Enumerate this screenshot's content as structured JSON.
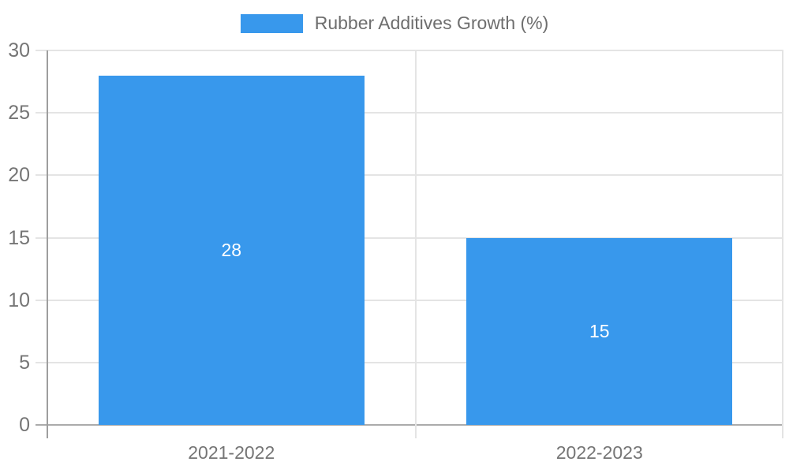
{
  "chart_data": {
    "type": "bar",
    "title": "",
    "legend": {
      "position": "top",
      "label": "Rubber Additives Growth (%)"
    },
    "categories": [
      "2021-2022",
      "2022-2023"
    ],
    "series": [
      {
        "name": "Rubber Additives Growth (%)",
        "values": [
          28,
          15
        ]
      }
    ],
    "ylim": [
      0,
      30
    ],
    "yticks": [
      0,
      5,
      10,
      15,
      20,
      25,
      30
    ],
    "xlabel": "",
    "ylabel": "",
    "grid": true,
    "value_labels_inside_bars": true
  },
  "colors": {
    "bar": "#3898ec",
    "gridline": "#e4e4e4",
    "axis_line": "#ababab",
    "y_axis_line": "#9e9e9e",
    "tick_text": "#757575",
    "legend_text": "#6e6e6e",
    "value_label_text": "#ffffff",
    "background": "#ffffff"
  }
}
